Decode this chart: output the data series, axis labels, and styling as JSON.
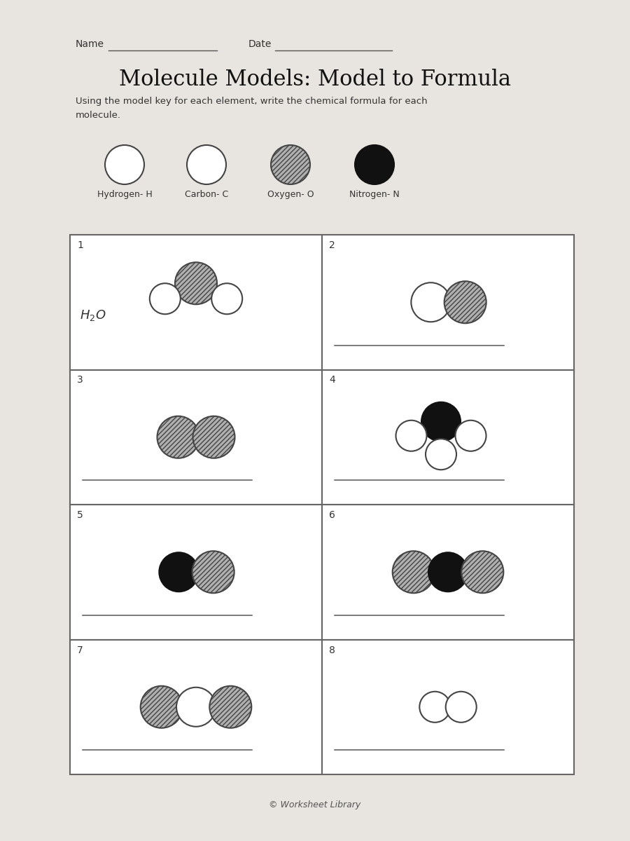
{
  "title": "Molecule Models: Model to Formula",
  "subtitle_line1": "Using the model key for each element, write the chemical formula for each",
  "subtitle_line2": "molecule.",
  "name_label": "Name",
  "date_label": "Date",
  "element_labels": [
    "Hydrogen- H",
    "Carbon- C",
    "Oxygen- O",
    "Nitrogen- N"
  ],
  "box1_formula": "H₂O",
  "copyright": "© Worksheet Library",
  "bg_color": "#e8e5e0",
  "box_bg": "#ffffff",
  "oxygen_color": "#b0b0b0",
  "nitrogen_color": "#111111",
  "hydrogen_fill": "#ffffff",
  "carbon_fill": "#ffffff",
  "edge_color": "#444444",
  "text_color": "#333333",
  "line_color": "#555555"
}
